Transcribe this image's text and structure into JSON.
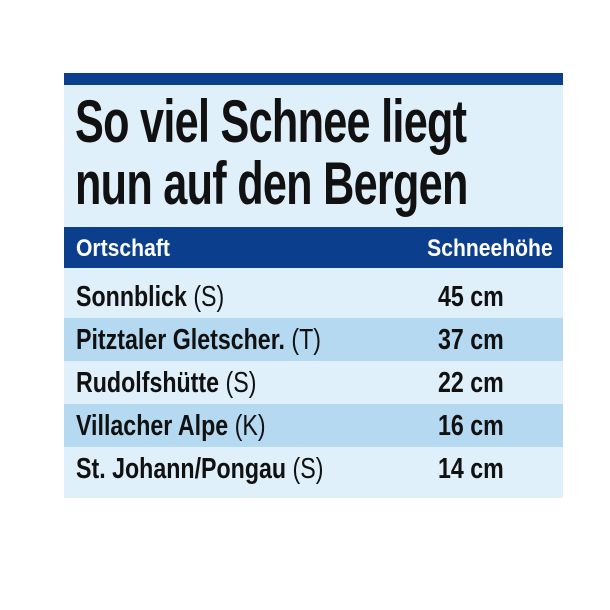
{
  "title_line1": "So viel Schnee liegt",
  "title_line2": "nun auf den Bergen",
  "colors": {
    "dark_blue": "#0b3e8c",
    "light_blue": "#dff0fb",
    "row_alt": "#b4d9f1"
  },
  "chart_data": {
    "type": "table",
    "title": "So viel Schnee liegt nun auf den Bergen",
    "columns": [
      "Ortschaft",
      "Schneehöhe"
    ],
    "rows": [
      {
        "name": "Sonnblick",
        "region": "(S)",
        "value": "45 cm"
      },
      {
        "name": "Pitztaler Gletscher.",
        "region": "(T)",
        "value": "37 cm"
      },
      {
        "name": "Rudolfshütte",
        "region": "(S)",
        "value": "22 cm"
      },
      {
        "name": "Villacher Alpe",
        "region": "(K)",
        "value": "16 cm"
      },
      {
        "name": "St. Johann/Pongau",
        "region": "(S)",
        "value": "14 cm"
      }
    ]
  }
}
